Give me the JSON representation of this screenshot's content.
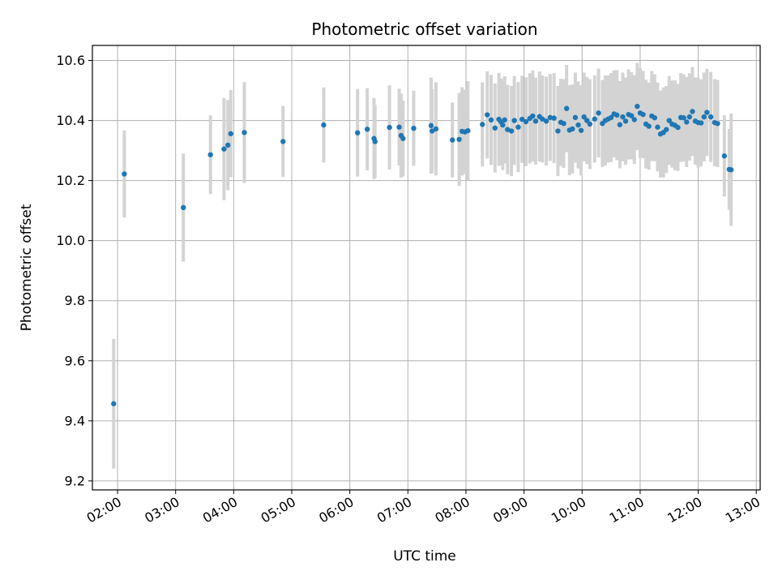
{
  "chart_data": {
    "type": "scatter",
    "title": "Photometric offset variation",
    "xlabel": "UTC time",
    "ylabel": "Photometric offset",
    "xlim": [
      "01:34",
      "13:04"
    ],
    "ylim": [
      9.17,
      10.65
    ],
    "x_ticks": [
      "02:00",
      "03:00",
      "04:00",
      "05:00",
      "06:00",
      "07:00",
      "08:00",
      "09:00",
      "10:00",
      "11:00",
      "12:00",
      "13:00"
    ],
    "y_ticks": [
      "9.2",
      "9.4",
      "9.6",
      "9.8",
      "10.0",
      "10.2",
      "10.4",
      "10.6"
    ],
    "grid": true,
    "errorbar_color": "#d3d3d3",
    "marker_color": "#1f77b4",
    "series": [
      {
        "x": [
          "01:56",
          "02:07",
          "03:08",
          "03:36",
          "03:50",
          "03:54",
          "03:57",
          "04:11",
          "04:51",
          "05:33",
          "06:08",
          "06:18",
          "06:25",
          "06:26",
          "06:41",
          "06:51",
          "06:53",
          "06:55",
          "07:06",
          "07:24",
          "07:25",
          "07:29",
          "07:46",
          "07:53",
          "07:56",
          "07:59",
          "08:02",
          "08:17",
          "08:22",
          "08:26",
          "08:30",
          "08:34",
          "08:36",
          "08:38",
          "08:40",
          "08:43",
          "08:47",
          "08:50",
          "08:54",
          "08:58",
          "09:02",
          "09:06",
          "09:09",
          "09:12",
          "09:16",
          "09:19",
          "09:23",
          "09:27",
          "09:31",
          "09:35",
          "09:38",
          "09:41",
          "09:44",
          "09:47",
          "09:50",
          "09:53",
          "09:56",
          "09:59",
          "10:02",
          "10:05",
          "10:08",
          "10:13",
          "10:17",
          "10:21",
          "10:24",
          "10:27",
          "10:30",
          "10:33",
          "10:36",
          "10:39",
          "10:42",
          "10:45",
          "10:48",
          "10:51",
          "10:54",
          "10:57",
          "11:00",
          "11:03",
          "11:06",
          "11:09",
          "11:12",
          "11:15",
          "11:18",
          "11:21",
          "11:24",
          "11:27",
          "11:30",
          "11:33",
          "11:36",
          "11:39",
          "11:42",
          "11:45",
          "11:48",
          "11:51",
          "11:54",
          "11:57",
          "12:00",
          "12:03",
          "12:06",
          "12:09",
          "12:13",
          "12:17",
          "12:20",
          "12:27",
          "12:32",
          "12:34"
        ],
        "y": [
          9.457,
          10.222,
          10.11,
          10.286,
          10.305,
          10.318,
          10.356,
          10.36,
          10.33,
          10.385,
          10.359,
          10.371,
          10.34,
          10.33,
          10.377,
          10.378,
          10.35,
          10.34,
          10.374,
          10.383,
          10.365,
          10.372,
          10.335,
          10.337,
          10.364,
          10.362,
          10.366,
          10.387,
          10.419,
          10.402,
          10.375,
          10.404,
          10.396,
          10.385,
          10.402,
          10.37,
          10.365,
          10.4,
          10.378,
          10.404,
          10.396,
          10.407,
          10.415,
          10.398,
          10.413,
          10.405,
          10.398,
          10.41,
          10.408,
          10.365,
          10.394,
          10.39,
          10.44,
          10.368,
          10.372,
          10.41,
          10.385,
          10.367,
          10.412,
          10.4,
          10.388,
          10.405,
          10.425,
          10.39,
          10.4,
          10.405,
          10.41,
          10.422,
          10.418,
          10.386,
          10.412,
          10.398,
          10.42,
          10.416,
          10.403,
          10.447,
          10.425,
          10.42,
          10.388,
          10.381,
          10.415,
          10.409,
          10.378,
          10.355,
          10.36,
          10.37,
          10.4,
          10.388,
          10.384,
          10.377,
          10.41,
          10.409,
          10.395,
          10.412,
          10.43,
          10.398,
          10.393,
          10.392,
          10.412,
          10.427,
          10.412,
          10.393,
          10.39,
          10.282,
          10.237,
          10.236
        ],
        "yerr": [
          0.216,
          0.145,
          0.18,
          0.131,
          0.17,
          0.15,
          0.145,
          0.168,
          0.118,
          0.125,
          0.146,
          0.137,
          0.135,
          0.121,
          0.14,
          0.128,
          0.14,
          0.126,
          0.125,
          0.16,
          0.14,
          0.155,
          0.125,
          0.155,
          0.147,
          0.14,
          0.165,
          0.14,
          0.145,
          0.15,
          0.148,
          0.155,
          0.145,
          0.15,
          0.145,
          0.149,
          0.15,
          0.148,
          0.15,
          0.145,
          0.148,
          0.15,
          0.152,
          0.145,
          0.15,
          0.145,
          0.148,
          0.145,
          0.15,
          0.15,
          0.145,
          0.148,
          0.145,
          0.15,
          0.148,
          0.15,
          0.145,
          0.15,
          0.148,
          0.145,
          0.15,
          0.145,
          0.148,
          0.145,
          0.15,
          0.145,
          0.148,
          0.145,
          0.15,
          0.145,
          0.148,
          0.145,
          0.15,
          0.145,
          0.148,
          0.145,
          0.15,
          0.145,
          0.148,
          0.145,
          0.15,
          0.145,
          0.148,
          0.145,
          0.15,
          0.145,
          0.148,
          0.145,
          0.15,
          0.145,
          0.148,
          0.145,
          0.15,
          0.145,
          0.148,
          0.145,
          0.15,
          0.145,
          0.148,
          0.145,
          0.15,
          0.145,
          0.145,
          0.135,
          0.135,
          0.187
        ]
      }
    ]
  }
}
